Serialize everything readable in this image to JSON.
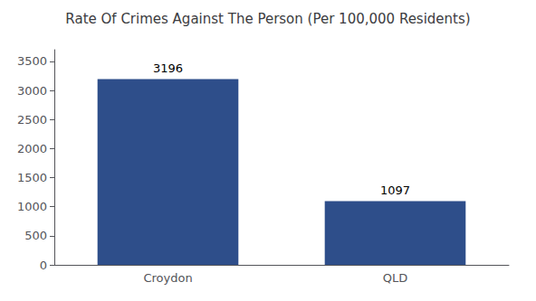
{
  "chart_data": {
    "type": "bar",
    "title": "Rate Of Crimes Against The Person (Per 100,000 Residents)",
    "categories": [
      "Croydon",
      "QLD"
    ],
    "values": [
      3196,
      1097
    ],
    "color": "#2e4e8a",
    "ylim": [
      0,
      3700
    ],
    "yticks": [
      0,
      500,
      1000,
      1500,
      2000,
      2500,
      3000,
      3500
    ],
    "grid": false,
    "data_labels": true
  }
}
